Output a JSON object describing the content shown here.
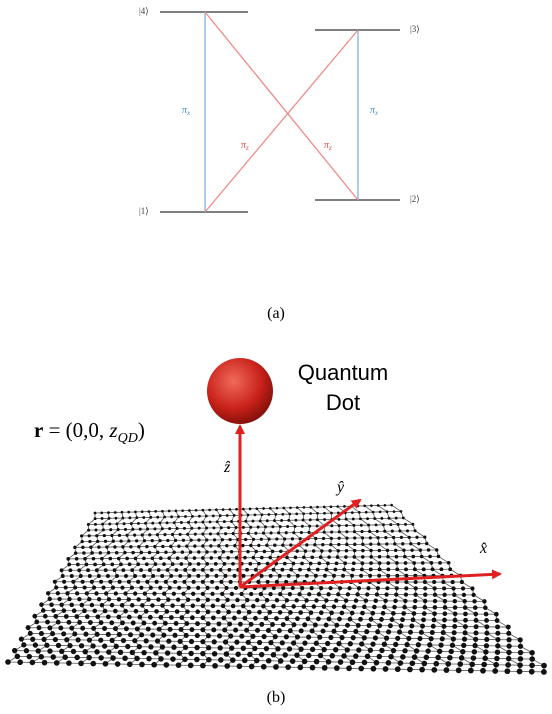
{
  "panel_a": {
    "levels": [
      {
        "label": "|4⟩"
      },
      {
        "label": "|3⟩"
      },
      {
        "label": "|1⟩"
      },
      {
        "label": "|2⟩"
      }
    ],
    "transitions": [
      {
        "symbol": "π",
        "sub": "x"
      },
      {
        "symbol": "π",
        "sub": "z"
      },
      {
        "symbol": "π",
        "sub": "z"
      },
      {
        "symbol": "π",
        "sub": "x"
      }
    ],
    "caption": "(a)"
  },
  "panel_b": {
    "dot_label": [
      "Quantum",
      "Dot"
    ],
    "position": {
      "bold": "r",
      "text": " = (0,0, ",
      "var": "z",
      "sub": "QD",
      "close": ")"
    },
    "axes": {
      "z": "ẑ",
      "y": "ŷ",
      "x": "x̂"
    },
    "caption": "(b)"
  }
}
